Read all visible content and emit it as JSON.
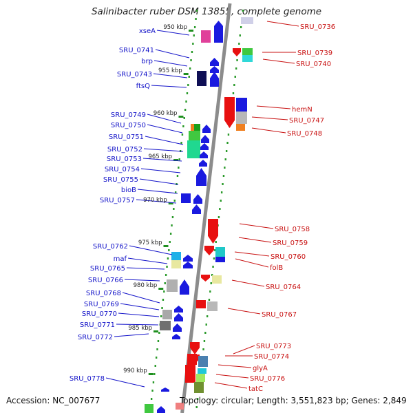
{
  "title": "Salinibacter ruber DSM 13855, complete genome",
  "accession": "Accession: NC_007677",
  "topology": "Topology: circular; Length: 3,551,823 bp; Genes: 2,849",
  "colors": {
    "left_label": "#1010c8",
    "right_label": "#c81010",
    "axis": "#888888",
    "tick": "#1f8f1f"
  },
  "ticks": [
    "950 kbp",
    "955 kbp",
    "960 kbp",
    "965 kbp",
    "970 kbp",
    "975 kbp",
    "980 kbp",
    "985 kbp",
    "990 kbp"
  ],
  "left_genes": [
    "xseA",
    "SRU_0741",
    "brp",
    "SRU_0743",
    "ftsQ",
    "SRU_0749",
    "SRU_0750",
    "SRU_0751",
    "SRU_0752",
    "SRU_0753",
    "SRU_0754",
    "SRU_0755",
    "bioB",
    "SRU_0757",
    "SRU_0762",
    "maf",
    "SRU_0765",
    "SRU_0766",
    "SRU_0768",
    "SRU_0769",
    "SRU_0770",
    "SRU_0771",
    "SRU_0772",
    "SRU_0778"
  ],
  "right_genes": [
    "SRU_0736",
    "SRU_0739",
    "SRU_0740",
    "hemN",
    "SRU_0747",
    "SRU_0748",
    "SRU_0758",
    "SRU_0759",
    "SRU_0760",
    "folB",
    "SRU_0764",
    "SRU_0767",
    "SRU_0773",
    "SRU_0774",
    "glyA",
    "SRU_0776",
    "tatC"
  ]
}
